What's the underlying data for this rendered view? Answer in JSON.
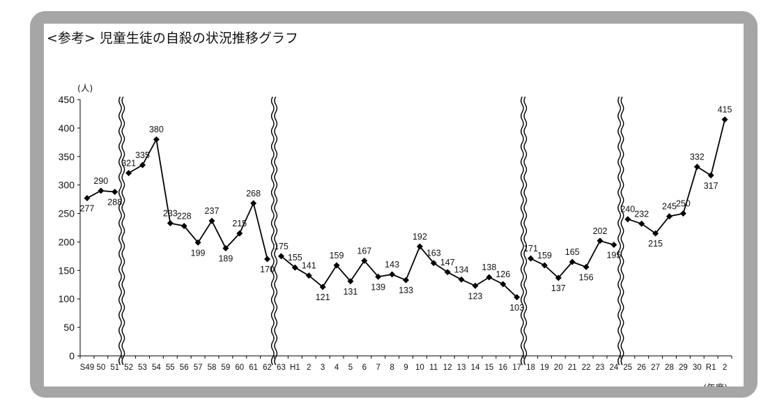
{
  "chart_data": {
    "type": "line",
    "title": "<参考>  児童生徒の自殺の状況推移グラフ",
    "ylabel": "(人)",
    "xlabel": "(年度)",
    "ylim": [
      0,
      450
    ],
    "yticks": [
      0,
      50,
      100,
      150,
      200,
      250,
      300,
      350,
      400,
      450
    ],
    "grid": false,
    "categories": [
      "S49",
      "50",
      "51",
      "52",
      "53",
      "54",
      "55",
      "56",
      "57",
      "58",
      "59",
      "60",
      "61",
      "62",
      "63",
      "H1",
      "2",
      "3",
      "4",
      "5",
      "6",
      "7",
      "8",
      "9",
      "10",
      "11",
      "12",
      "13",
      "14",
      "15",
      "16",
      "17",
      "18",
      "19",
      "20",
      "21",
      "22",
      "23",
      "24",
      "25",
      "26",
      "27",
      "28",
      "29",
      "30",
      "R1",
      "2"
    ],
    "values": [
      277,
      290,
      288,
      321,
      335,
      380,
      233,
      228,
      199,
      237,
      189,
      215,
      268,
      170,
      175,
      155,
      141,
      121,
      159,
      131,
      167,
      139,
      143,
      133,
      192,
      163,
      147,
      134,
      123,
      138,
      126,
      103,
      171,
      159,
      137,
      165,
      156,
      202,
      195,
      240,
      232,
      215,
      245,
      250,
      332,
      317,
      415
    ],
    "breaks_after": [
      "51",
      "62",
      "17",
      "24"
    ],
    "point_labels": [
      "277",
      "290",
      "288",
      "321",
      "335",
      "380",
      "233",
      "228",
      "199",
      "237",
      "189",
      "215",
      "268",
      "170",
      "175",
      "155",
      "141",
      "121",
      "159",
      "131",
      "167",
      "139",
      "143",
      "133",
      "192",
      "163",
      "147",
      "134",
      "123",
      "138",
      "126",
      "103",
      "171",
      "159",
      "137",
      "165",
      "156",
      "202",
      "195",
      "240",
      "232",
      "215",
      "245",
      "250",
      "332",
      "317",
      "415"
    ],
    "y_tick_labels": [
      "0",
      "50",
      "100",
      "150",
      "200",
      "250",
      "300",
      "350",
      "400",
      "450"
    ],
    "series_color": "#000000",
    "frame_color": "#a6a6a6"
  }
}
